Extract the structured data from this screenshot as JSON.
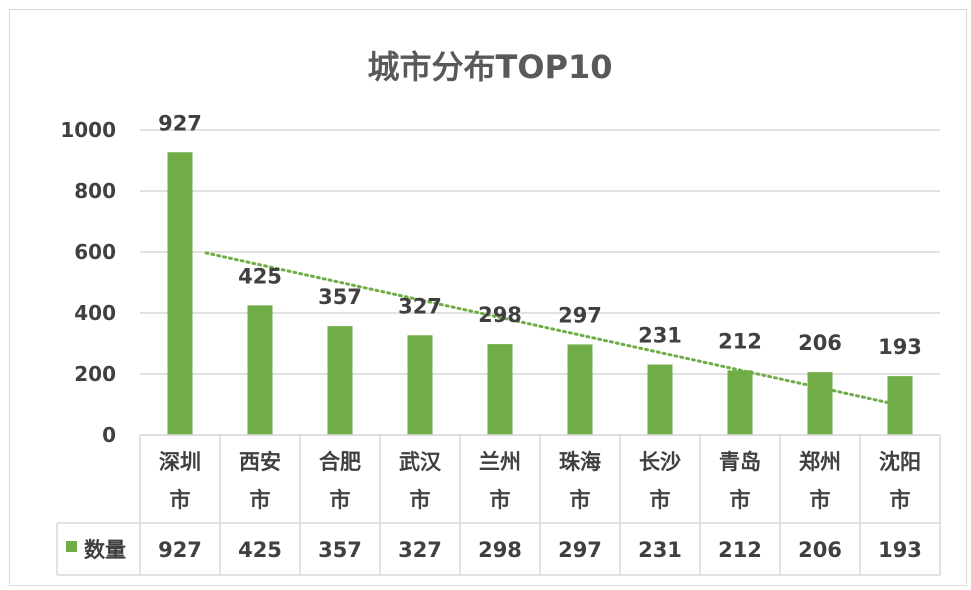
{
  "chart_data": {
    "type": "bar",
    "title": "城市分布TOP10",
    "categories": [
      "深圳市",
      "西安市",
      "合肥市",
      "武汉市",
      "兰州市",
      "珠海市",
      "长沙市",
      "青岛市",
      "郑州市",
      "沈阳市"
    ],
    "series": [
      {
        "name": "数量",
        "values": [
          927,
          425,
          357,
          327,
          298,
          297,
          231,
          212,
          206,
          193
        ]
      }
    ],
    "ylim": [
      0,
      1000
    ],
    "yticks": [
      0,
      200,
      400,
      600,
      800,
      1000
    ],
    "grid": true,
    "trendline": {
      "type": "linear",
      "style": "dotted"
    },
    "data_table": true,
    "legend": "data-table",
    "colors": {
      "bar": "#70ad47",
      "trend": "#70ad47",
      "grid": "#d9d9d9",
      "text": "#404040",
      "title": "#595959"
    }
  }
}
